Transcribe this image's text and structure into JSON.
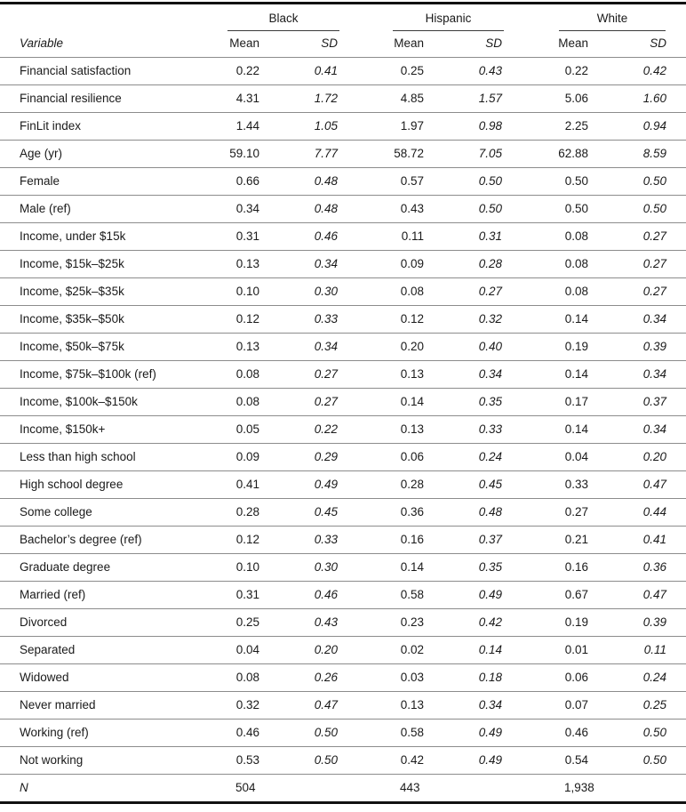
{
  "table": {
    "variable_header": "Variable",
    "groups": [
      {
        "label": "Black",
        "mean_label": "Mean",
        "sd_label": "SD"
      },
      {
        "label": "Hispanic",
        "mean_label": "Mean",
        "sd_label": "SD"
      },
      {
        "label": "White",
        "mean_label": "Mean",
        "sd_label": "SD"
      }
    ],
    "rows": [
      {
        "variable": "Financial satisfaction",
        "values": [
          "0.22",
          "0.41",
          "0.25",
          "0.43",
          "0.22",
          "0.42"
        ]
      },
      {
        "variable": "Financial resilience",
        "values": [
          "4.31",
          "1.72",
          "4.85",
          "1.57",
          "5.06",
          "1.60"
        ]
      },
      {
        "variable": "FinLit index",
        "values": [
          "1.44",
          "1.05",
          "1.97",
          "0.98",
          "2.25",
          "0.94"
        ]
      },
      {
        "variable": "Age (yr)",
        "values": [
          "59.10",
          "7.77",
          "58.72",
          "7.05",
          "62.88",
          "8.59"
        ]
      },
      {
        "variable": "Female",
        "values": [
          "0.66",
          "0.48",
          "0.57",
          "0.50",
          "0.50",
          "0.50"
        ]
      },
      {
        "variable": "Male (ref)",
        "values": [
          "0.34",
          "0.48",
          "0.43",
          "0.50",
          "0.50",
          "0.50"
        ]
      },
      {
        "variable": "Income, under $15k",
        "values": [
          "0.31",
          "0.46",
          "0.11",
          "0.31",
          "0.08",
          "0.27"
        ]
      },
      {
        "variable": "Income, $15k–$25k",
        "values": [
          "0.13",
          "0.34",
          "0.09",
          "0.28",
          "0.08",
          "0.27"
        ]
      },
      {
        "variable": "Income, $25k–$35k",
        "values": [
          "0.10",
          "0.30",
          "0.08",
          "0.27",
          "0.08",
          "0.27"
        ]
      },
      {
        "variable": "Income, $35k–$50k",
        "values": [
          "0.12",
          "0.33",
          "0.12",
          "0.32",
          "0.14",
          "0.34"
        ]
      },
      {
        "variable": "Income, $50k–$75k",
        "values": [
          "0.13",
          "0.34",
          "0.20",
          "0.40",
          "0.19",
          "0.39"
        ]
      },
      {
        "variable": "Income, $75k–$100k (ref)",
        "values": [
          "0.08",
          "0.27",
          "0.13",
          "0.34",
          "0.14",
          "0.34"
        ]
      },
      {
        "variable": "Income, $100k–$150k",
        "values": [
          "0.08",
          "0.27",
          "0.14",
          "0.35",
          "0.17",
          "0.37"
        ]
      },
      {
        "variable": "Income, $150k+",
        "values": [
          "0.05",
          "0.22",
          "0.13",
          "0.33",
          "0.14",
          "0.34"
        ]
      },
      {
        "variable": "Less than high school",
        "values": [
          "0.09",
          "0.29",
          "0.06",
          "0.24",
          "0.04",
          "0.20"
        ]
      },
      {
        "variable": "High school degree",
        "values": [
          "0.41",
          "0.49",
          "0.28",
          "0.45",
          "0.33",
          "0.47"
        ]
      },
      {
        "variable": "Some college",
        "values": [
          "0.28",
          "0.45",
          "0.36",
          "0.48",
          "0.27",
          "0.44"
        ]
      },
      {
        "variable": "Bachelor’s degree (ref)",
        "values": [
          "0.12",
          "0.33",
          "0.16",
          "0.37",
          "0.21",
          "0.41"
        ]
      },
      {
        "variable": "Graduate degree",
        "values": [
          "0.10",
          "0.30",
          "0.14",
          "0.35",
          "0.16",
          "0.36"
        ]
      },
      {
        "variable": "Married (ref)",
        "values": [
          "0.31",
          "0.46",
          "0.58",
          "0.49",
          "0.67",
          "0.47"
        ]
      },
      {
        "variable": "Divorced",
        "values": [
          "0.25",
          "0.43",
          "0.23",
          "0.42",
          "0.19",
          "0.39"
        ]
      },
      {
        "variable": "Separated",
        "values": [
          "0.04",
          "0.20",
          "0.02",
          "0.14",
          "0.01",
          "0.11"
        ]
      },
      {
        "variable": "Widowed",
        "values": [
          "0.08",
          "0.26",
          "0.03",
          "0.18",
          "0.06",
          "0.24"
        ]
      },
      {
        "variable": "Never married",
        "values": [
          "0.32",
          "0.47",
          "0.13",
          "0.34",
          "0.07",
          "0.25"
        ]
      },
      {
        "variable": "Working (ref)",
        "values": [
          "0.46",
          "0.50",
          "0.58",
          "0.49",
          "0.46",
          "0.50"
        ]
      },
      {
        "variable": "Not working",
        "values": [
          "0.53",
          "0.50",
          "0.42",
          "0.49",
          "0.54",
          "0.50"
        ]
      }
    ],
    "n_row": {
      "label": "N",
      "values": [
        "504",
        "443",
        "1,938"
      ]
    }
  },
  "colors": {
    "text": "#1a1a1a",
    "rule_heavy": "#111111",
    "rule_light": "#8c8c8c",
    "spanner_rule": "#3a3a3a"
  }
}
